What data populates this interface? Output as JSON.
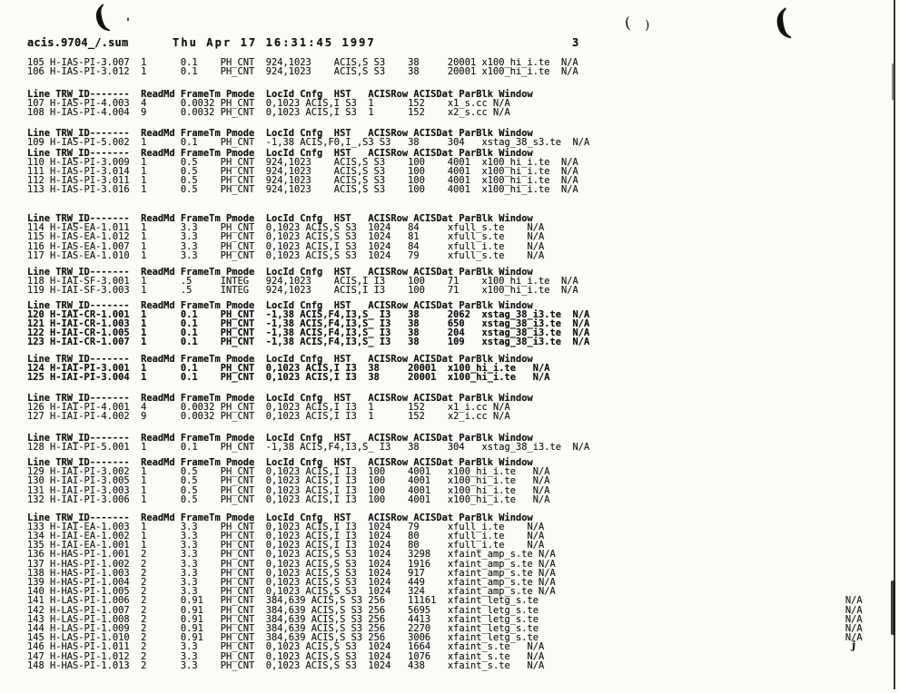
{
  "header": {
    "filename": "acis.9704_/.sum",
    "datetime": "Thu Apr 17 16:31:45 1997",
    "page_number": "3"
  },
  "table": {
    "header_cells": [
      "Line TRW_ID-------",
      "ReadMd",
      "FrameTm",
      "Pmode",
      "LocId",
      "Cnfg",
      "HST",
      "ACISRow",
      "ACISDat",
      "ParBlk",
      "Window"
    ],
    "groups": [
      {
        "rows": [
          [
            "105",
            "H-IAS-PI-3.007",
            "1",
            "0.1",
            "PH_CNT",
            "924,1023",
            "ACIS,S",
            "S3",
            "38",
            "20001",
            "x100_hi_i.te",
            "N/A"
          ],
          [
            "106",
            "H-IAS-PI-3.012",
            "1",
            "0.1",
            "PH_CNT",
            "924,1023",
            "ACIS,S",
            "S3",
            "38",
            "20001",
            "x100_hi_i.te",
            "N/A"
          ]
        ]
      },
      {
        "rows": [
          [
            "107",
            "H-IAS-PI-4.003",
            "4",
            "0.0032",
            "PH_CNT",
            "0,1023",
            "ACIS,I",
            "S3",
            "1",
            "152",
            "x1_s.cc",
            "N/A"
          ],
          [
            "108",
            "H-IAS-PI-4.004",
            "9",
            "0.0032",
            "PH_CNT",
            "0,1023",
            "ACIS,I",
            "S3",
            "1",
            "152",
            "x2_s.cc",
            "N/A"
          ]
        ]
      },
      {
        "rows": [
          [
            "109",
            "H-IAS-PI-5.002",
            "1",
            "0.1",
            "PH_CNT",
            "-1,38",
            "ACIS,F0,I_,S3",
            "S3",
            "38",
            "304",
            "xstag_38_s3.te",
            "N/A"
          ]
        ]
      },
      {
        "rows": [
          [
            "110",
            "H-IAS-PI-3.009",
            "1",
            "0.5",
            "PH_CNT",
            "924,1023",
            "ACIS,S",
            "S3",
            "100",
            "4001",
            "x100_hi_i.te",
            "N/A"
          ],
          [
            "111",
            "H-IAS-PI-3.014",
            "1",
            "0.5",
            "PH_CNT",
            "924,1023",
            "ACIS,S",
            "S3",
            "100",
            "4001",
            "x100_hi_i.te",
            "N/A"
          ],
          [
            "112",
            "H-IAS-PI-3.011",
            "1",
            "0.5",
            "PH_CNT",
            "924,1023",
            "ACIS,S",
            "S3",
            "100",
            "4001",
            "x100_hi_i.te",
            "N/A"
          ],
          [
            "113",
            "H-IAS-PI-3.016",
            "1",
            "0.5",
            "PH_CNT",
            "924,1023",
            "ACIS,S",
            "S3",
            "100",
            "4001",
            "x100_hi_i.te",
            "N/A"
          ]
        ]
      },
      {
        "rows": [
          [
            "114",
            "H-IAS-EA-1.011",
            "1",
            "3.3",
            "PH_CNT",
            "0,1023",
            "ACIS,S",
            "S3",
            "1024",
            "84",
            "xfull_s.te",
            "N/A"
          ],
          [
            "115",
            "H-IAS-EA-1.012",
            "1",
            "3.3",
            "PH_CNT",
            "0,1023",
            "ACIS,S",
            "S3",
            "1024",
            "81",
            "xfull_s.te",
            "N/A"
          ],
          [
            "116",
            "H-IAS-EA-1.007",
            "1",
            "3.3",
            "PH_CNT",
            "0,1023",
            "ACIS,I",
            "S3",
            "1024",
            "84",
            "xfull_i.te",
            "N/A"
          ],
          [
            "117",
            "H-IAS-EA-1.010",
            "1",
            "3.3",
            "PH_CNT",
            "0,1023",
            "ACIS,S",
            "S3",
            "1024",
            "79",
            "xfull_s.te",
            "N/A"
          ]
        ]
      },
      {
        "rows": [
          [
            "118",
            "H-IAI-SF-3.001",
            "1",
            ".5",
            "INTEG",
            "924,1023",
            "ACIS,I",
            "I3",
            "100",
            "71",
            "x100_hi_i.te",
            "N/A"
          ],
          [
            "119",
            "H-IAI-SF-3.003",
            "1",
            ".5",
            "INTEG",
            "924,1023",
            "ACIS,I",
            "I3",
            "100",
            "71",
            "x100_hi_i.te",
            "N/A"
          ]
        ]
      },
      {
        "rows": [
          [
            "120",
            "H-IAI-CR-1.001",
            "1",
            "0.1",
            "PH_CNT",
            "-1,38",
            "ACIS,F4,I3,S_",
            "I3",
            "38",
            "2062",
            "xstag_38_i3.te",
            "N/A"
          ],
          [
            "121",
            "H-IAI-CR-1.003",
            "1",
            "0.1",
            "PH_CNT",
            "-1,38",
            "ACIS,F4,I3,S_",
            "I3",
            "38",
            "650",
            "xstag_38_i3.te",
            "N/A"
          ],
          [
            "122",
            "H-IAI-CR-1.005",
            "1",
            "0.1",
            "PH_CNT",
            "-1,38",
            "ACIS,F4,I3,S_",
            "I3",
            "38",
            "204",
            "xstag_38_i3.te",
            "N/A"
          ],
          [
            "123",
            "H-IAI-CR-1.007",
            "1",
            "0.1",
            "PH_CNT",
            "-1,38",
            "ACIS,F4,I3,S_",
            "I3",
            "38",
            "109",
            "xstag_38_i3.te",
            "N/A"
          ]
        ]
      },
      {
        "rows": [
          [
            "124",
            "H-IAI-PI-3.001",
            "1",
            "0.1",
            "PH_CNT",
            "0,1023",
            "ACIS,I",
            "I3",
            "38",
            "20001",
            "x100_hi_i.te",
            "N/A"
          ],
          [
            "125",
            "H-IAI-PI-3.004",
            "1",
            "0.1",
            "PH_CNT",
            "0,1023",
            "ACIS,I",
            "I3",
            "38",
            "20001",
            "x100_hi_i.te",
            "N/A"
          ]
        ]
      },
      {
        "rows": [
          [
            "126",
            "H-IAI-PI-4.001",
            "4",
            "0.0032",
            "PH_CNT",
            "0,1023",
            "ACIS,I",
            "I3",
            "1",
            "152",
            "x1_i.cc",
            "N/A"
          ],
          [
            "127",
            "H-IAI-PI-4.002",
            "9",
            "0.0032",
            "PH_CNT",
            "0,1023",
            "ACIS,I",
            "I3",
            "1",
            "152",
            "x2_i.cc",
            "N/A"
          ]
        ]
      },
      {
        "rows": [
          [
            "128",
            "H-IAI-PI-5.001",
            "1",
            "0.1",
            "PH_CNT",
            "-1,38",
            "ACIS,F4,I3,S_",
            "I3",
            "38",
            "304",
            "xstag_38_i3.te",
            "N/A"
          ]
        ]
      },
      {
        "rows": [
          [
            "129",
            "H-IAI-PI-3.002",
            "1",
            "0.5",
            "PH_CNT",
            "0,1023",
            "ACIS,I",
            "I3",
            "100",
            "4001",
            "x100_hi_i.te",
            "N/A"
          ],
          [
            "130",
            "H-IAI-PI-3.005",
            "1",
            "0.5",
            "PH_CNT",
            "0,1023",
            "ACIS,I",
            "I3",
            "100",
            "4001",
            "x100_hi_i.te",
            "N/A"
          ],
          [
            "131",
            "H-IAI-PI-3.003",
            "1",
            "0.5",
            "PH_CNT",
            "0,1023",
            "ACIS,I",
            "I3",
            "100",
            "4001",
            "x100_hi_i.te",
            "N/A"
          ],
          [
            "132",
            "H-IAI-PI-3.006",
            "1",
            "0.5",
            "PH_CNT",
            "0,1023",
            "ACIS,I",
            "I3",
            "100",
            "4001",
            "x100_hi_i.te",
            "N/A"
          ]
        ]
      },
      {
        "rows": [
          [
            "133",
            "H-IAI-EA-1.003",
            "1",
            "3.3",
            "PH_CNT",
            "0,1023",
            "ACIS,I",
            "I3",
            "1024",
            "79",
            "xfull_i.te",
            "N/A"
          ],
          [
            "134",
            "H-IAI-EA-1.002",
            "1",
            "3.3",
            "PH_CNT",
            "0,1023",
            "ACIS,I",
            "I3",
            "1024",
            "80",
            "xfull_i.te",
            "N/A"
          ],
          [
            "135",
            "H-IAI-EA-1.001",
            "1",
            "3.3",
            "PH_CNT",
            "0,1023",
            "ACIS,I",
            "I3",
            "1024",
            "80",
            "xfull_i.te",
            "N/A"
          ],
          [
            "136",
            "H-HAS-PI-1.001",
            "2",
            "3.3",
            "PH_CNT",
            "0,1023",
            "ACIS,S",
            "S3",
            "1024",
            "3298",
            "xfaint_amp_s.te",
            "N/A"
          ],
          [
            "137",
            "H-HAS-PI-1.002",
            "2",
            "3.3",
            "PH_CNT",
            "0,1023",
            "ACIS,S",
            "S3",
            "1024",
            "1916",
            "xfaint_amp_s.te",
            "N/A"
          ],
          [
            "138",
            "H-HAS-PI-1.003",
            "2",
            "3.3",
            "PH_CNT",
            "0,1023",
            "ACIS,S",
            "S3",
            "1024",
            "917",
            "xfaint_amp_s.te",
            "N/A"
          ],
          [
            "139",
            "H-HAS-PI-1.004",
            "2",
            "3.3",
            "PH_CNT",
            "0,1023",
            "ACIS,S",
            "S3",
            "1024",
            "449",
            "xfaint_amp_s.te",
            "N/A"
          ],
          [
            "140",
            "H-HAS-PI-1.005",
            "2",
            "3.3",
            "PH_CNT",
            "0,1023",
            "ACIS,S",
            "S3",
            "1024",
            "324",
            "xfaint_amp_s.te",
            "N/A"
          ],
          [
            "141",
            "H-LAS-PI-1.006",
            "2",
            "0.91",
            "PH_CNT",
            "384,639",
            "ACIS,S",
            "S3",
            "256",
            "11161",
            "xfaint_letg_s.te",
            "N/A"
          ],
          [
            "142",
            "H-LAS-PI-1.007",
            "2",
            "0.91",
            "PH_CNT",
            "384,639",
            "ACIS,S",
            "S3",
            "256",
            "5695",
            "xfaint_letg_s.te",
            "N/A"
          ],
          [
            "143",
            "H-LAS-PI-1.008",
            "2",
            "0.91",
            "PH_CNT",
            "384,639",
            "ACIS,S",
            "S3",
            "256",
            "4413",
            "xfaint_letg_s.te",
            "N/A"
          ],
          [
            "144",
            "H-LAS-PI-1.009",
            "2",
            "0.91",
            "PH_CNT",
            "384,639",
            "ACIS,S",
            "S3",
            "256",
            "2270",
            "xfaint_letg_s.te",
            "N/A"
          ],
          [
            "145",
            "H-LAS-PI-1.010",
            "2",
            "0.91",
            "PH_CNT",
            "384,639",
            "ACIS,S",
            "S3",
            "256",
            "3006",
            "xfaint_letg_s.te",
            "N/A"
          ],
          [
            "146",
            "H-HAS-PI-1.011",
            "2",
            "3.3",
            "PH_CNT",
            "0,1023",
            "ACIS,S",
            "S3",
            "1024",
            "1664",
            "xfaint_s.te",
            "N/A"
          ],
          [
            "147",
            "H-HAS-PI-1.012",
            "2",
            "3.3",
            "PH_CNT",
            "0,1023",
            "ACIS,S",
            "S3",
            "1024",
            "1076",
            "xfaint_s.te",
            "N/A"
          ],
          [
            "148",
            "H-HAS-PI-1.013",
            "2",
            "3.3",
            "PH_CNT",
            "0,1023",
            "ACIS,S",
            "S3",
            "1024",
            "438",
            "xfaint_s.te",
            "N/A"
          ]
        ]
      }
    ]
  },
  "artifacts": {
    "paren_top_left": "(",
    "tick_top_left": "'",
    "paren_mid_open": "(",
    "paren_mid_close": ")",
    "paren_top_right": "(",
    "mark_bottom_right": "j"
  }
}
